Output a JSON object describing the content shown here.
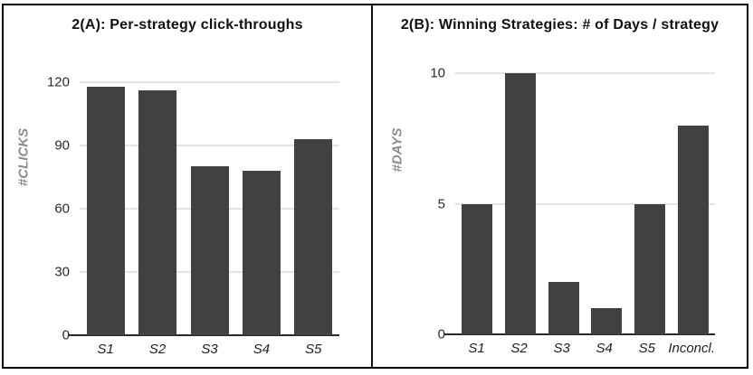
{
  "figure": {
    "description": "Two-panel bar chart figure",
    "colors": {
      "bar": "#414141",
      "gridline": "#c9c9c9",
      "axis": "#2a2a2a",
      "y_axis_label": "#8c8c8c",
      "border": "#000000"
    }
  },
  "chart_data": [
    {
      "type": "bar",
      "title": "2(A): Per-strategy click-throughs",
      "ylabel": "#CLICKS",
      "xlabel": "",
      "categories": [
        "S1",
        "S2",
        "S3",
        "S4",
        "S5"
      ],
      "values": [
        118,
        116,
        80,
        78,
        93
      ],
      "ylim": [
        0,
        120
      ],
      "yticks": [
        0,
        30,
        60,
        90,
        120
      ],
      "grid": true,
      "legend": false,
      "bar_color": "#414141"
    },
    {
      "type": "bar",
      "title": "2(B): Winning Strategies: # of Days / strategy",
      "ylabel": "#DAYS",
      "xlabel": "",
      "categories": [
        "S1",
        "S2",
        "S3",
        "S4",
        "S5",
        "Inconcl."
      ],
      "values": [
        5,
        10,
        2,
        1,
        5,
        8
      ],
      "ylim": [
        0,
        10
      ],
      "yticks": [
        0,
        5,
        10
      ],
      "grid": true,
      "legend": false,
      "bar_color": "#414141"
    }
  ]
}
